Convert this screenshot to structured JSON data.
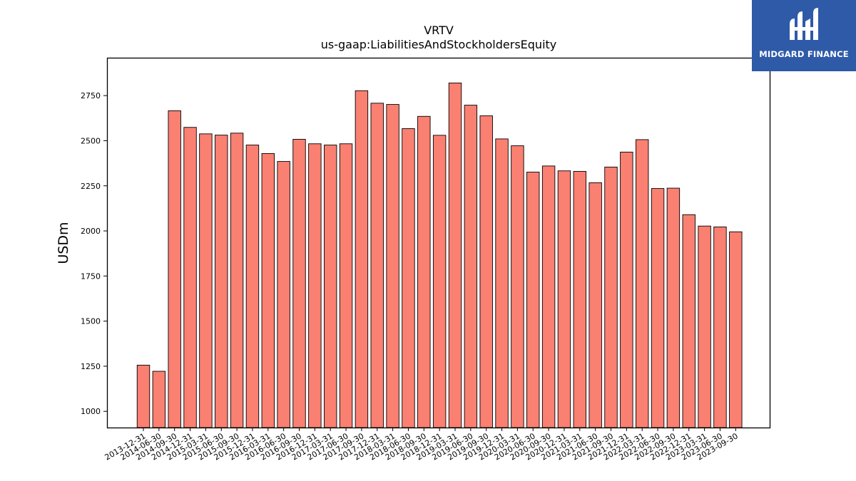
{
  "brand": {
    "name": "MIDGARD FINANCE",
    "logo_icon": "midgard-mh-monogram-icon",
    "bg_color": "#2e5aa8"
  },
  "chart_data": {
    "type": "bar",
    "title": "VRTV",
    "subtitle": "us-gaap:LiabilitiesAndStockholdersEquity",
    "xlabel": "",
    "ylabel": "USDm",
    "ylim": [
      910,
      2960
    ],
    "yticks": [
      1000,
      1250,
      1500,
      1750,
      2000,
      2250,
      2500,
      2750
    ],
    "grid": false,
    "bar_color": "#fa8072",
    "edge_color": "#000000",
    "categories": [
      "2013-12-31",
      "2014-06-30",
      "2014-09-30",
      "2014-12-31",
      "2015-03-31",
      "2015-06-30",
      "2015-09-30",
      "2015-12-31",
      "2016-03-31",
      "2016-06-30",
      "2016-09-30",
      "2016-12-31",
      "2017-03-31",
      "2017-06-30",
      "2017-09-30",
      "2017-12-31",
      "2018-03-31",
      "2018-06-30",
      "2018-09-30",
      "2018-12-31",
      "2019-03-31",
      "2019-06-30",
      "2019-09-30",
      "2019-12-31",
      "2020-03-31",
      "2020-06-30",
      "2020-09-30",
      "2020-12-31",
      "2021-03-31",
      "2021-06-30",
      "2021-09-30",
      "2021-12-31",
      "2022-03-31",
      "2022-06-30",
      "2022-09-30",
      "2022-12-31",
      "2023-03-31",
      "2023-06-30",
      "2023-09-30"
    ],
    "values": [
      1256,
      1222,
      2666,
      2574,
      2538,
      2531,
      2542,
      2476,
      2429,
      2385,
      2508,
      2483,
      2476,
      2483,
      2777,
      2708,
      2701,
      2567,
      2635,
      2530,
      2820,
      2697,
      2638,
      2510,
      2472,
      2326,
      2360,
      2333,
      2330,
      2267,
      2354,
      2437,
      2506,
      2235,
      2237,
      2090,
      2027,
      2022,
      1995
    ]
  }
}
